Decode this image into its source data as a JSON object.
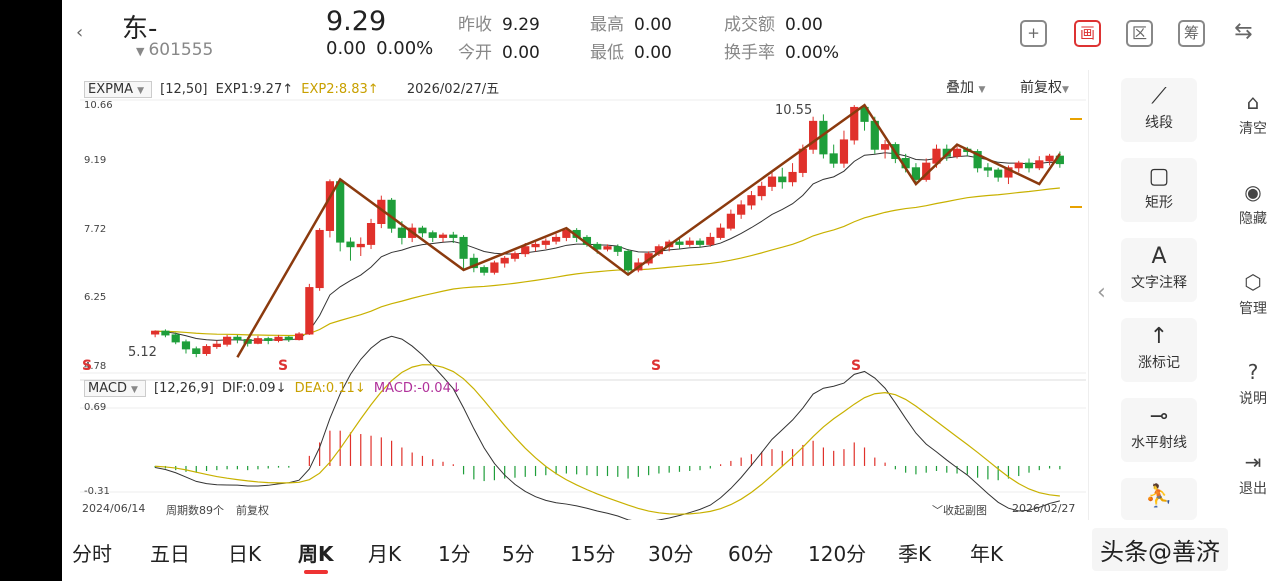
{
  "header": {
    "back_icon": "chevron-left-icon",
    "stock_name": "东-",
    "stock_code": "601555",
    "price": "9.29",
    "change": "0.00",
    "change_pct": "0.00%",
    "prev_close_label": "昨收",
    "prev_close": "9.29",
    "open_label": "今开",
    "open": "0.00",
    "high_label": "最高",
    "high": "0.00",
    "low_label": "最低",
    "low": "0.00",
    "volume_label": "成交额",
    "volume": "0.00",
    "turnover_label": "换手率",
    "turnover": "0.00%",
    "icons": [
      "plus-icon",
      "draw-icon",
      "zone-icon",
      "chips-icon",
      "switch-device-icon"
    ],
    "icon_glyphs": [
      "+",
      "画",
      "区",
      "筹",
      "⇆"
    ]
  },
  "main_chart": {
    "indicator": "EXPMA",
    "params": "[12,50]",
    "exp1_label": "EXP1:9.27↑",
    "exp2_label": "EXP2:8.83↑",
    "date": "2026/02/27/五",
    "overlay_label": "叠加",
    "adjust_label": "前复权",
    "y_labels": [
      "10.66",
      "9.19",
      "7.72",
      "6.25",
      "4.78"
    ],
    "high_annotation": "10.55",
    "low_annotation": "5.12",
    "s_marks": [
      "S",
      "S",
      "S",
      "S"
    ]
  },
  "macd_chart": {
    "indicator": "MACD",
    "params": "[12,26,9]",
    "dif_label": "DIF:0.09↓",
    "dea_label": "DEA:0.11↓",
    "macd_label": "MACD:-0.04↓",
    "y_top": "0.69",
    "y_bottom": "-0.31",
    "start_date": "2024/06/14",
    "period_count": "周期数89个",
    "adjust": "前复权",
    "collapse_label": "收起副图",
    "end_date": "2026/02/27"
  },
  "tools": [
    {
      "icon": "segment-icon",
      "glyph": "⟋",
      "label": "线段"
    },
    {
      "icon": "rectangle-icon",
      "glyph": "▢",
      "label": "矩形"
    },
    {
      "icon": "text-note-icon",
      "glyph": "A",
      "label": "文字注释"
    },
    {
      "icon": "rise-mark-icon",
      "glyph": "↑",
      "label": "涨标记"
    },
    {
      "icon": "horizontal-ray-icon",
      "glyph": "⊸",
      "label": "水平射线"
    },
    {
      "icon": "more-tool-icon",
      "glyph": "⛹",
      "label": ""
    }
  ],
  "side_actions": [
    {
      "icon": "clear-icon",
      "glyph": "⌂",
      "label": "清空"
    },
    {
      "icon": "eye-icon",
      "glyph": "◉",
      "label": "隐藏"
    },
    {
      "icon": "manage-icon",
      "glyph": "⬡",
      "label": "管理"
    },
    {
      "icon": "help-icon",
      "glyph": "?",
      "label": "说明"
    },
    {
      "icon": "exit-icon",
      "glyph": "⇥",
      "label": "退出"
    }
  ],
  "periods": [
    "分时",
    "五日",
    "日K",
    "周K",
    "月K",
    "1分",
    "5分",
    "15分",
    "30分",
    "60分",
    "120分",
    "季K",
    "年K"
  ],
  "active_period": "周K",
  "watermark": "头条@善济",
  "colors": {
    "up": "#e0312b",
    "down": "#1e9e3a",
    "exp1": "#333333",
    "exp2": "#c8b100",
    "trend": "#8b3a0e",
    "dea": "#c8b100"
  },
  "chart_data": {
    "type": "candlestick",
    "period": "weekly",
    "x_range": [
      "2024/06/14",
      "2026/02/27"
    ],
    "ylim": [
      4.78,
      10.66
    ],
    "y_ticks": [
      10.66,
      9.19,
      7.72,
      6.25,
      4.78
    ],
    "candles": [
      [
        5.62,
        5.68,
        5.55,
        5.7
      ],
      [
        5.68,
        5.6,
        5.55,
        5.72
      ],
      [
        5.6,
        5.45,
        5.4,
        5.65
      ],
      [
        5.45,
        5.3,
        5.2,
        5.5
      ],
      [
        5.3,
        5.2,
        5.12,
        5.35
      ],
      [
        5.2,
        5.35,
        5.15,
        5.4
      ],
      [
        5.35,
        5.4,
        5.3,
        5.48
      ],
      [
        5.4,
        5.55,
        5.35,
        5.6
      ],
      [
        5.55,
        5.5,
        5.42,
        5.6
      ],
      [
        5.5,
        5.42,
        5.35,
        5.55
      ],
      [
        5.42,
        5.52,
        5.4,
        5.58
      ],
      [
        5.52,
        5.48,
        5.4,
        5.56
      ],
      [
        5.48,
        5.55,
        5.44,
        5.6
      ],
      [
        5.55,
        5.5,
        5.45,
        5.58
      ],
      [
        5.5,
        5.62,
        5.48,
        5.66
      ],
      [
        5.62,
        6.62,
        5.6,
        6.7
      ],
      [
        6.62,
        7.85,
        6.55,
        7.9
      ],
      [
        7.85,
        8.9,
        7.7,
        8.95
      ],
      [
        8.9,
        7.6,
        7.4,
        8.95
      ],
      [
        7.6,
        7.5,
        7.2,
        7.7
      ],
      [
        7.5,
        7.55,
        7.3,
        7.7
      ],
      [
        7.55,
        8.0,
        7.45,
        8.1
      ],
      [
        8.0,
        8.5,
        7.9,
        8.6
      ],
      [
        8.5,
        7.9,
        7.8,
        8.55
      ],
      [
        7.9,
        7.7,
        7.55,
        8.05
      ],
      [
        7.7,
        7.9,
        7.6,
        8.0
      ],
      [
        7.9,
        7.8,
        7.7,
        7.95
      ],
      [
        7.8,
        7.7,
        7.6,
        7.85
      ],
      [
        7.7,
        7.75,
        7.6,
        7.8
      ],
      [
        7.75,
        7.7,
        7.58,
        7.82
      ],
      [
        7.7,
        7.25,
        7.0,
        7.75
      ],
      [
        7.25,
        7.05,
        6.95,
        7.35
      ],
      [
        7.05,
        6.95,
        6.88,
        7.1
      ],
      [
        6.95,
        7.15,
        6.9,
        7.2
      ],
      [
        7.15,
        7.25,
        7.05,
        7.3
      ],
      [
        7.25,
        7.35,
        7.18,
        7.4
      ],
      [
        7.35,
        7.5,
        7.28,
        7.58
      ],
      [
        7.5,
        7.55,
        7.4,
        7.6
      ],
      [
        7.55,
        7.62,
        7.45,
        7.68
      ],
      [
        7.62,
        7.7,
        7.55,
        7.78
      ],
      [
        7.7,
        7.85,
        7.62,
        7.9
      ],
      [
        7.85,
        7.7,
        7.6,
        7.9
      ],
      [
        7.7,
        7.55,
        7.5,
        7.75
      ],
      [
        7.55,
        7.45,
        7.35,
        7.6
      ],
      [
        7.45,
        7.5,
        7.4,
        7.55
      ],
      [
        7.5,
        7.4,
        7.3,
        7.55
      ],
      [
        7.4,
        7.0,
        6.9,
        7.45
      ],
      [
        7.0,
        7.15,
        6.95,
        7.25
      ],
      [
        7.15,
        7.35,
        7.1,
        7.4
      ],
      [
        7.35,
        7.5,
        7.3,
        7.55
      ],
      [
        7.5,
        7.6,
        7.4,
        7.65
      ],
      [
        7.6,
        7.55,
        7.45,
        7.68
      ],
      [
        7.55,
        7.62,
        7.5,
        7.7
      ],
      [
        7.62,
        7.55,
        7.48,
        7.68
      ],
      [
        7.55,
        7.7,
        7.5,
        7.8
      ],
      [
        7.7,
        7.9,
        7.65,
        8.0
      ],
      [
        7.9,
        8.2,
        7.85,
        8.3
      ],
      [
        8.2,
        8.4,
        8.1,
        8.5
      ],
      [
        8.4,
        8.6,
        8.3,
        8.7
      ],
      [
        8.6,
        8.8,
        8.5,
        8.9
      ],
      [
        8.8,
        9.0,
        8.7,
        9.1
      ],
      [
        9.0,
        8.9,
        8.75,
        9.2
      ],
      [
        8.9,
        9.1,
        8.8,
        9.3
      ],
      [
        9.1,
        9.6,
        9.0,
        9.7
      ],
      [
        9.6,
        10.2,
        9.5,
        10.3
      ],
      [
        10.2,
        9.5,
        9.4,
        10.35
      ],
      [
        9.5,
        9.3,
        9.2,
        9.7
      ],
      [
        9.3,
        9.8,
        9.2,
        10.0
      ],
      [
        9.8,
        10.5,
        9.7,
        10.55
      ],
      [
        10.5,
        10.2,
        10.0,
        10.55
      ],
      [
        10.2,
        9.6,
        9.5,
        10.3
      ],
      [
        9.6,
        9.7,
        9.4,
        9.8
      ],
      [
        9.7,
        9.4,
        9.3,
        9.75
      ],
      [
        9.4,
        9.2,
        9.1,
        9.5
      ],
      [
        9.2,
        8.95,
        8.85,
        9.3
      ],
      [
        8.95,
        9.3,
        8.9,
        9.4
      ],
      [
        9.3,
        9.6,
        9.2,
        9.7
      ],
      [
        9.6,
        9.45,
        9.35,
        9.7
      ],
      [
        9.45,
        9.6,
        9.4,
        9.7
      ],
      [
        9.6,
        9.55,
        9.45,
        9.65
      ],
      [
        9.55,
        9.2,
        9.1,
        9.6
      ],
      [
        9.2,
        9.15,
        9.0,
        9.3
      ],
      [
        9.15,
        9.0,
        8.9,
        9.2
      ],
      [
        9.0,
        9.2,
        8.85,
        9.25
      ],
      [
        9.2,
        9.3,
        9.1,
        9.35
      ],
      [
        9.3,
        9.2,
        9.1,
        9.4
      ],
      [
        9.2,
        9.35,
        9.15,
        9.45
      ],
      [
        9.35,
        9.45,
        9.25,
        9.5
      ],
      [
        9.45,
        9.29,
        9.2,
        9.55
      ]
    ],
    "trend_lines": [
      [
        [
          8,
          5.12
        ],
        [
          18,
          8.95
        ],
        [
          30,
          7.0
        ],
        [
          40,
          7.9
        ],
        [
          46,
          6.9
        ],
        [
          69,
          10.55
        ],
        [
          74,
          8.85
        ],
        [
          78,
          9.7
        ],
        [
          86,
          8.85
        ],
        [
          88,
          9.5
        ]
      ]
    ],
    "macd": {
      "ylim": [
        -0.31,
        0.69
      ],
      "hist": [
        -0.02,
        -0.03,
        -0.05,
        -0.07,
        -0.08,
        -0.06,
        -0.05,
        -0.04,
        -0.04,
        -0.05,
        -0.04,
        -0.03,
        -0.02,
        -0.02,
        0.0,
        0.12,
        0.28,
        0.42,
        0.42,
        0.4,
        0.38,
        0.36,
        0.34,
        0.3,
        0.22,
        0.16,
        0.12,
        0.08,
        0.05,
        0.02,
        -0.1,
        -0.16,
        -0.18,
        -0.17,
        -0.15,
        -0.14,
        -0.13,
        -0.12,
        -0.11,
        -0.1,
        -0.09,
        -0.1,
        -0.11,
        -0.12,
        -0.12,
        -0.13,
        -0.15,
        -0.13,
        -0.11,
        -0.09,
        -0.08,
        -0.07,
        -0.06,
        -0.05,
        -0.03,
        0.02,
        0.06,
        0.1,
        0.14,
        0.17,
        0.2,
        0.18,
        0.2,
        0.25,
        0.3,
        0.22,
        0.18,
        0.2,
        0.28,
        0.22,
        0.1,
        0.04,
        -0.04,
        -0.08,
        -0.1,
        -0.08,
        -0.06,
        -0.08,
        -0.09,
        -0.1,
        -0.14,
        -0.16,
        -0.17,
        -0.15,
        -0.12,
        -0.08,
        -0.05,
        -0.03,
        -0.04
      ]
    }
  }
}
